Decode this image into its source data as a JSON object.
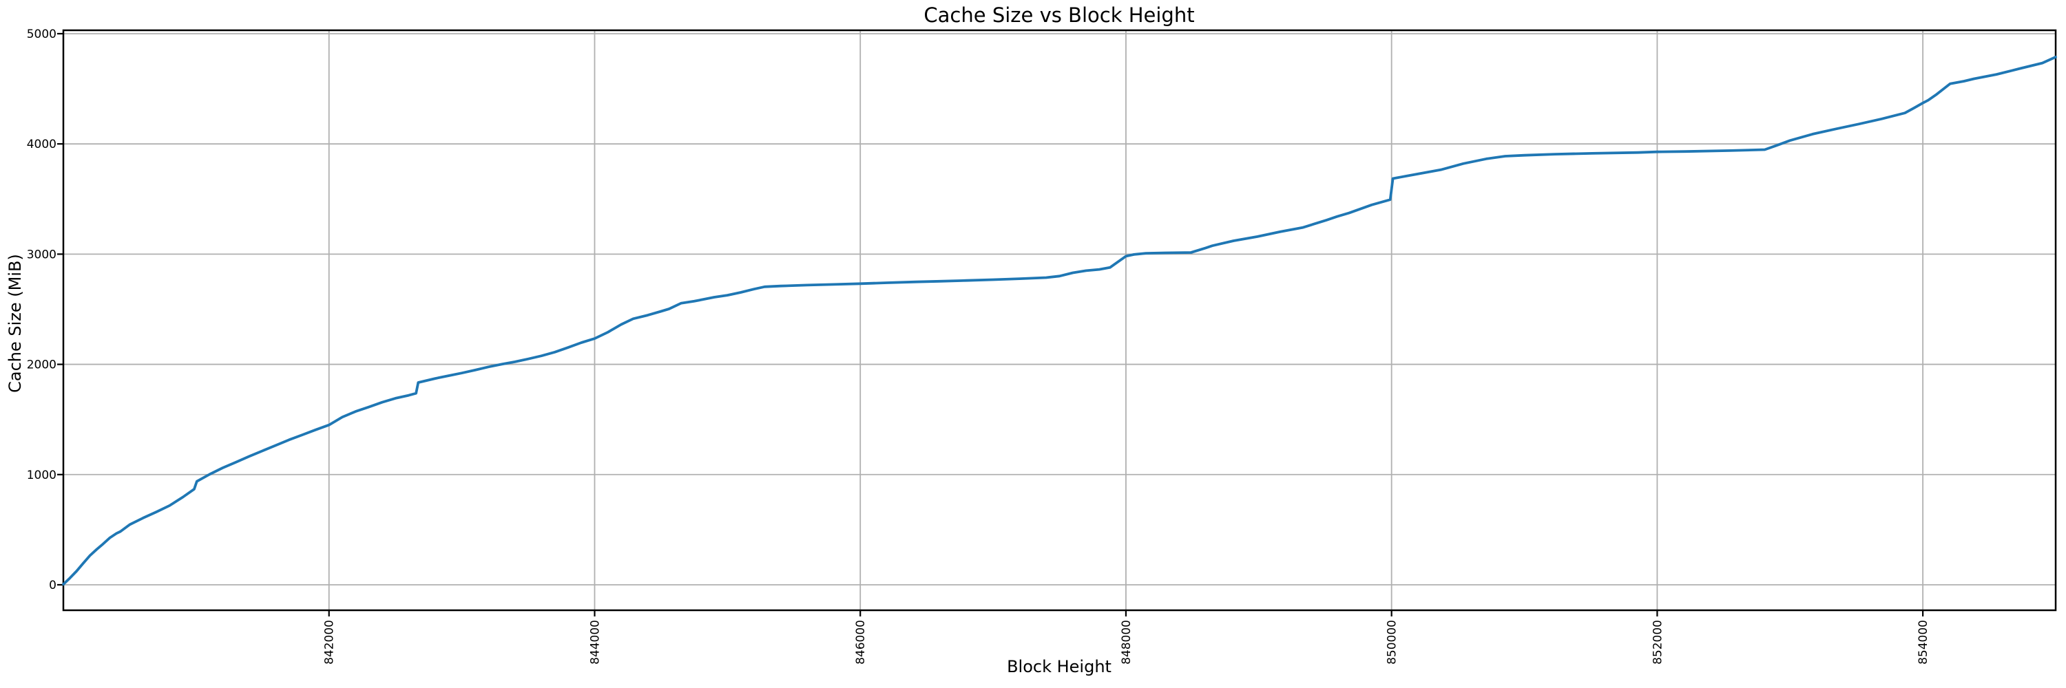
{
  "style": {
    "line_color": "#1f77b4",
    "grid_color": "#b0b0b0",
    "spine_color": "#000000",
    "tick_color": "#000000",
    "text_color": "#000000",
    "background_color": "#ffffff"
  },
  "chart_data": {
    "type": "line",
    "title": "Cache Size vs Block Height",
    "xlabel": "Block Height",
    "ylabel": "Cache Size (MiB)",
    "xlim": [
      840000,
      855000
    ],
    "ylim": [
      -231,
      5031
    ],
    "grid": true,
    "legend_position": "none",
    "xticks": [
      842000,
      844000,
      846000,
      848000,
      850000,
      852000,
      854000
    ],
    "xtick_labels": [
      "842000",
      "844000",
      "846000",
      "848000",
      "850000",
      "852000",
      "854000"
    ],
    "xtick_rotation_deg": 90,
    "yticks": [
      0,
      1000,
      2000,
      3000,
      4000,
      5000
    ],
    "ytick_labels": [
      "0",
      "1000",
      "2000",
      "3000",
      "4000",
      "5000"
    ],
    "series": [
      {
        "name": "Cache Size (MiB)",
        "color": "#1f77b4",
        "points": [
          [
            840000,
            5
          ],
          [
            840050,
            62
          ],
          [
            840100,
            125
          ],
          [
            840150,
            196
          ],
          [
            840200,
            265
          ],
          [
            840250,
            320
          ],
          [
            840300,
            372
          ],
          [
            840350,
            426
          ],
          [
            840400,
            466
          ],
          [
            840430,
            484
          ],
          [
            840500,
            546
          ],
          [
            840600,
            606
          ],
          [
            840700,
            661
          ],
          [
            840800,
            719
          ],
          [
            840900,
            796
          ],
          [
            840985,
            868
          ],
          [
            841005,
            938
          ],
          [
            841100,
            1002
          ],
          [
            841200,
            1061
          ],
          [
            841300,
            1113
          ],
          [
            841400,
            1166
          ],
          [
            841500,
            1216
          ],
          [
            841600,
            1266
          ],
          [
            841700,
            1316
          ],
          [
            841800,
            1361
          ],
          [
            841900,
            1406
          ],
          [
            842000,
            1450
          ],
          [
            842100,
            1522
          ],
          [
            842200,
            1572
          ],
          [
            842300,
            1613
          ],
          [
            842400,
            1656
          ],
          [
            842500,
            1692
          ],
          [
            842600,
            1719
          ],
          [
            842655,
            1737
          ],
          [
            842672,
            1835
          ],
          [
            842800,
            1872
          ],
          [
            842900,
            1897
          ],
          [
            843000,
            1921
          ],
          [
            843100,
            1948
          ],
          [
            843200,
            1977
          ],
          [
            843300,
            2001
          ],
          [
            843400,
            2023
          ],
          [
            843500,
            2049
          ],
          [
            843600,
            2077
          ],
          [
            843700,
            2111
          ],
          [
            843800,
            2153
          ],
          [
            843900,
            2197
          ],
          [
            844000,
            2234
          ],
          [
            844100,
            2292
          ],
          [
            844200,
            2362
          ],
          [
            844290,
            2414
          ],
          [
            844400,
            2446
          ],
          [
            844500,
            2481
          ],
          [
            844560,
            2503
          ],
          [
            844650,
            2554
          ],
          [
            844750,
            2573
          ],
          [
            844900,
            2609
          ],
          [
            845000,
            2627
          ],
          [
            845100,
            2653
          ],
          [
            845200,
            2683
          ],
          [
            845280,
            2704
          ],
          [
            845400,
            2711
          ],
          [
            845600,
            2719
          ],
          [
            845800,
            2725
          ],
          [
            846000,
            2732
          ],
          [
            846200,
            2740
          ],
          [
            846420,
            2748
          ],
          [
            846600,
            2754
          ],
          [
            846800,
            2761
          ],
          [
            847000,
            2768
          ],
          [
            847200,
            2777
          ],
          [
            847400,
            2787
          ],
          [
            847500,
            2801
          ],
          [
            847600,
            2831
          ],
          [
            847700,
            2850
          ],
          [
            847800,
            2861
          ],
          [
            847880,
            2879
          ],
          [
            848000,
            2981
          ],
          [
            848060,
            2997
          ],
          [
            848150,
            3008
          ],
          [
            848300,
            3012
          ],
          [
            848490,
            3015
          ],
          [
            848600,
            3056
          ],
          [
            848650,
            3076
          ],
          [
            848810,
            3121
          ],
          [
            848990,
            3159
          ],
          [
            849160,
            3203
          ],
          [
            849330,
            3241
          ],
          [
            849510,
            3309
          ],
          [
            849590,
            3341
          ],
          [
            849680,
            3373
          ],
          [
            849850,
            3447
          ],
          [
            849990,
            3494
          ],
          [
            850010,
            3686
          ],
          [
            850200,
            3728
          ],
          [
            850370,
            3765
          ],
          [
            850540,
            3821
          ],
          [
            850715,
            3865
          ],
          [
            850855,
            3889
          ],
          [
            851000,
            3897
          ],
          [
            851230,
            3907
          ],
          [
            851510,
            3914
          ],
          [
            851855,
            3922
          ],
          [
            852000,
            3928
          ],
          [
            852210,
            3931
          ],
          [
            852550,
            3939
          ],
          [
            852810,
            3948
          ],
          [
            852900,
            3987
          ],
          [
            853000,
            4031
          ],
          [
            853170,
            4089
          ],
          [
            853350,
            4137
          ],
          [
            853520,
            4181
          ],
          [
            853690,
            4227
          ],
          [
            853865,
            4281
          ],
          [
            853935,
            4327
          ],
          [
            854000,
            4371
          ],
          [
            854040,
            4396
          ],
          [
            854105,
            4451
          ],
          [
            854205,
            4546
          ],
          [
            854310,
            4569
          ],
          [
            854385,
            4591
          ],
          [
            854555,
            4631
          ],
          [
            854725,
            4682
          ],
          [
            854900,
            4734
          ],
          [
            855000,
            4788
          ]
        ]
      }
    ]
  }
}
